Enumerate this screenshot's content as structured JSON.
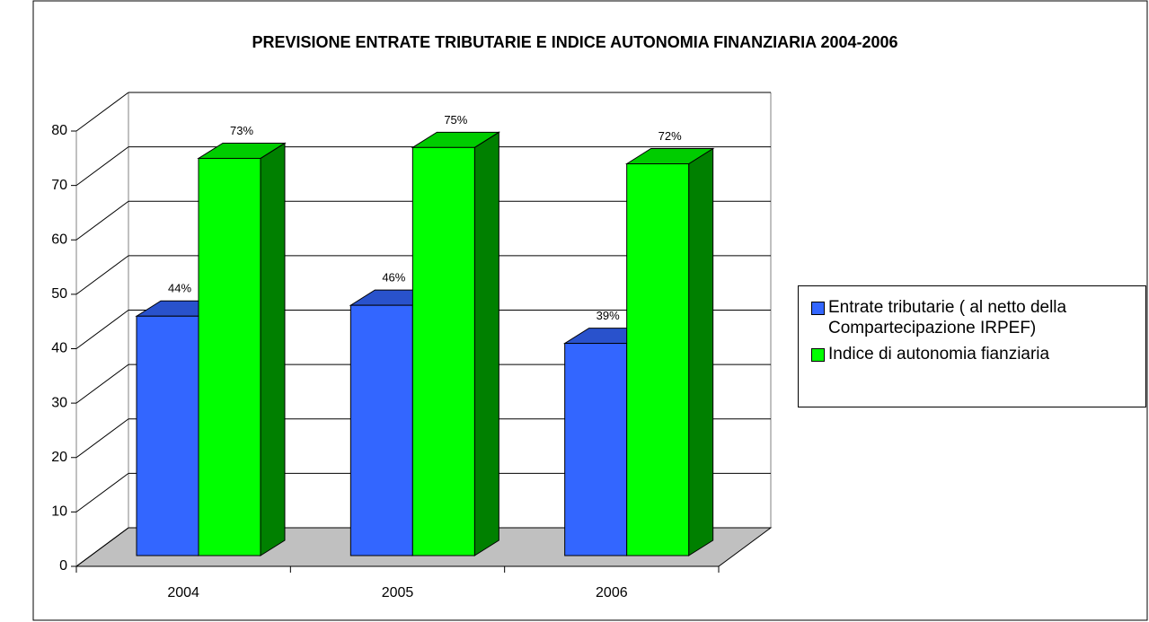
{
  "chart_data": {
    "type": "bar3d",
    "title": "PREVISIONE ENTRATE TRIBUTARIE E INDICE AUTONOMIA FINANZIARIA 2004-2006",
    "categories": [
      "2004",
      "2005",
      "2006"
    ],
    "series": [
      {
        "name": "Entrate tributarie ( al netto della Compartecipazione IRPEF)",
        "color": "#3366ff",
        "values": [
          44,
          46,
          39
        ],
        "value_labels": [
          "44%",
          "46%",
          "39%"
        ]
      },
      {
        "name": "Indice di autonomia fianziaria",
        "color": "#00ff00",
        "values": [
          73,
          75,
          72
        ],
        "value_labels": [
          "73%",
          "75%",
          "72%"
        ]
      }
    ],
    "ylim": [
      0,
      80
    ],
    "yticks": [
      0,
      10,
      20,
      30,
      40,
      50,
      60,
      70,
      80
    ],
    "grid": true,
    "legend": "right"
  }
}
